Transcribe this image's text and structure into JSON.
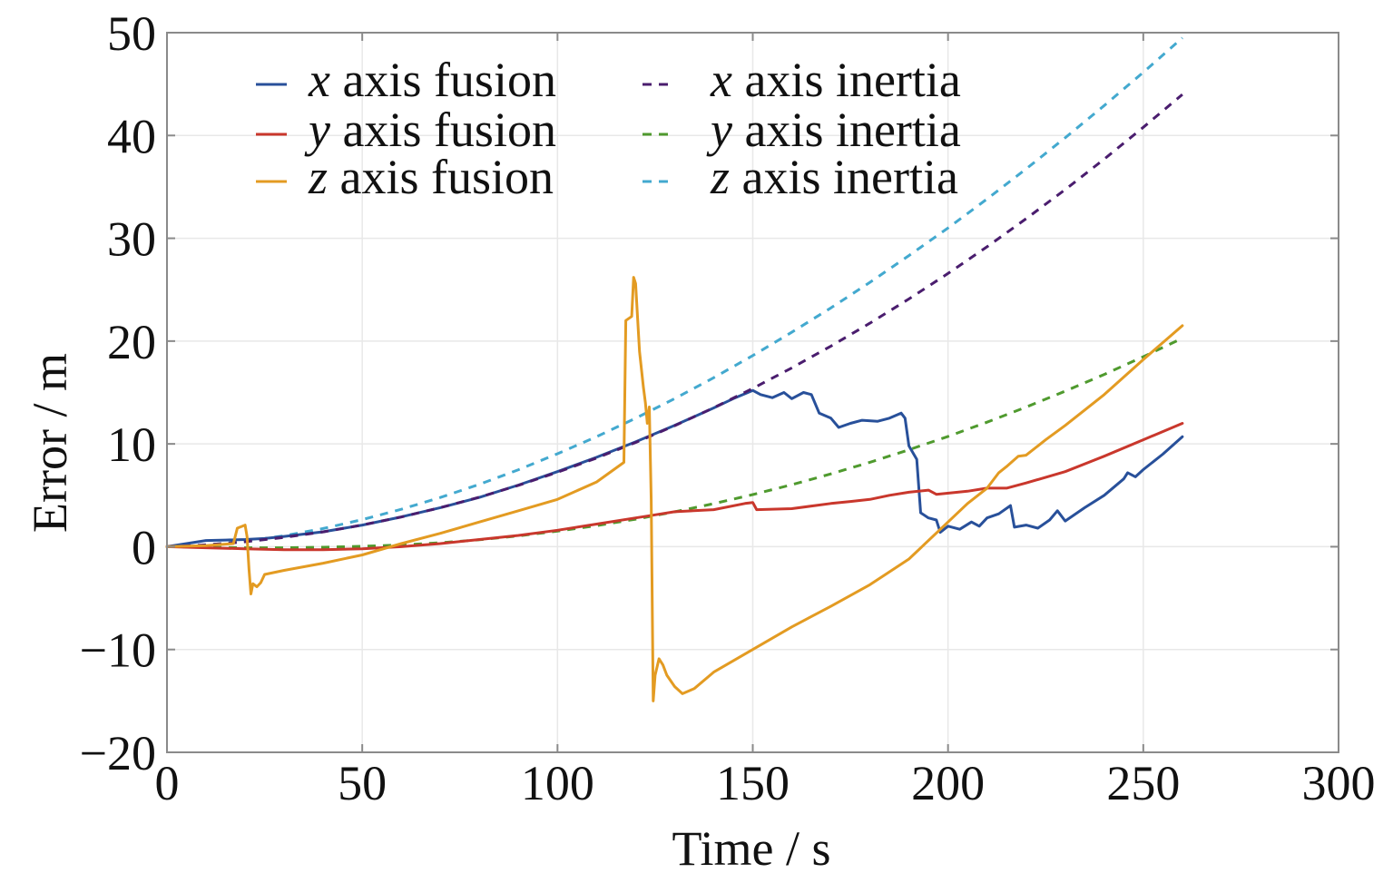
{
  "chart_data": {
    "type": "line",
    "xlabel": "Time / s",
    "ylabel": "Error / m",
    "xlim": [
      0,
      300
    ],
    "ylim": [
      -20,
      50
    ],
    "xticks": [
      0,
      50,
      100,
      150,
      200,
      250,
      300
    ],
    "xticklabels": [
      "0",
      "50",
      "100",
      "150",
      "200",
      "250",
      "300"
    ],
    "yticks": [
      -20,
      -10,
      0,
      10,
      20,
      30,
      40,
      50
    ],
    "yticklabels": [
      "−20",
      "−10",
      "0",
      "10",
      "20",
      "30",
      "40",
      "50"
    ],
    "grid": true,
    "legend": {
      "position": "top-left",
      "columns": 2
    },
    "series": [
      {
        "name": "x axis fusion",
        "color": "#28509a",
        "style": "solid",
        "x": [
          0,
          5,
          10,
          15,
          20,
          25,
          30,
          40,
          50,
          60,
          70,
          80,
          90,
          100,
          110,
          120,
          130,
          140,
          145,
          150,
          152,
          155,
          158,
          160,
          163,
          165,
          167,
          170,
          172,
          175,
          178,
          182,
          185,
          188,
          189,
          190,
          192,
          193,
          195,
          197,
          198,
          200,
          203,
          206,
          208,
          210,
          213,
          216,
          217,
          220,
          223,
          226,
          228,
          230,
          235,
          240,
          245,
          246,
          248,
          250,
          255,
          260
        ],
        "y": [
          0,
          0.3,
          0.6,
          0.65,
          0.7,
          0.8,
          1.0,
          1.45,
          2.1,
          2.9,
          3.8,
          4.8,
          6.0,
          7.3,
          8.7,
          10.2,
          11.8,
          13.5,
          14.4,
          15.2,
          14.8,
          14.5,
          15.0,
          14.4,
          15.0,
          14.8,
          13.0,
          12.5,
          11.6,
          12.0,
          12.3,
          12.2,
          12.5,
          13.0,
          12.5,
          9.8,
          8.5,
          3.3,
          2.8,
          2.6,
          1.4,
          2.0,
          1.7,
          2.4,
          2.0,
          2.8,
          3.2,
          4.0,
          1.9,
          2.1,
          1.8,
          2.6,
          3.5,
          2.5,
          3.8,
          5.0,
          6.6,
          7.2,
          6.8,
          7.5,
          9.0,
          10.7
        ]
      },
      {
        "name": "y axis fusion",
        "color": "#c9372c",
        "style": "solid",
        "x": [
          0,
          10,
          20,
          30,
          40,
          50,
          60,
          70,
          80,
          90,
          100,
          110,
          120,
          125,
          130,
          140,
          148,
          150,
          151,
          160,
          170,
          175,
          180,
          185,
          190,
          195,
          197,
          205,
          210,
          215,
          220,
          230,
          240,
          250,
          260
        ],
        "y": [
          0,
          -0.1,
          -0.2,
          -0.3,
          -0.3,
          -0.2,
          0,
          0.3,
          0.7,
          1.1,
          1.6,
          2.2,
          2.8,
          3.1,
          3.4,
          3.6,
          4.2,
          4.3,
          3.6,
          3.7,
          4.2,
          4.4,
          4.6,
          5.0,
          5.3,
          5.5,
          5.1,
          5.4,
          5.7,
          5.7,
          6.2,
          7.3,
          8.8,
          10.4,
          12.0
        ]
      },
      {
        "name": "z axis fusion",
        "color": "#e39b22",
        "style": "solid",
        "x": [
          0,
          10,
          17,
          18,
          20,
          20.5,
          21,
          21.5,
          22,
          23,
          24,
          25,
          30,
          40,
          50,
          60,
          70,
          80,
          90,
          100,
          110,
          117,
          117.5,
          119,
          119.5,
          120,
          121,
          122,
          122.5,
          123,
          123.5,
          124,
          124.5,
          125,
          126,
          127,
          128,
          130,
          132,
          135,
          140,
          150,
          160,
          170,
          180,
          190,
          200,
          205,
          210,
          213,
          215,
          218,
          220,
          225,
          230,
          240,
          250,
          260
        ],
        "y": [
          0,
          0.1,
          0.3,
          1.8,
          2.1,
          1.0,
          -2.2,
          -4.6,
          -3.6,
          -3.9,
          -3.5,
          -2.7,
          -2.3,
          -1.6,
          -0.8,
          0.3,
          1.3,
          2.4,
          3.5,
          4.6,
          6.3,
          8.2,
          22.0,
          22.4,
          26.2,
          25.6,
          19.0,
          15.5,
          14.0,
          12.0,
          13.6,
          4.5,
          -15.0,
          -12.5,
          -10.9,
          -11.5,
          -12.5,
          -13.6,
          -14.3,
          -13.8,
          -12.2,
          -10.0,
          -7.8,
          -5.8,
          -3.7,
          -1.2,
          2.4,
          4.2,
          5.7,
          7.2,
          7.8,
          8.8,
          8.9,
          10.4,
          11.8,
          14.8,
          18.2,
          21.5
        ]
      },
      {
        "name": "x axis inertia",
        "color": "#4a1d6e",
        "style": "dashed",
        "x": [
          0,
          10,
          20,
          30,
          40,
          50,
          60,
          70,
          80,
          90,
          100,
          110,
          120,
          130,
          140,
          150,
          160,
          170,
          180,
          190,
          200,
          210,
          220,
          230,
          240,
          250,
          260
        ],
        "y": [
          0,
          0.18,
          0.48,
          0.9,
          1.44,
          2.11,
          2.89,
          3.8,
          4.82,
          5.97,
          7.24,
          8.63,
          10.14,
          11.77,
          13.52,
          15.4,
          17.39,
          19.51,
          21.74,
          24.1,
          26.58,
          29.18,
          31.9,
          34.74,
          37.7,
          40.79,
          43.99
        ]
      },
      {
        "name": "y axis inertia",
        "color": "#4f9a2e",
        "style": "dashed",
        "x": [
          0,
          10,
          20,
          30,
          40,
          50,
          60,
          70,
          80,
          90,
          100,
          110,
          120,
          130,
          140,
          150,
          160,
          170,
          180,
          190,
          200,
          210,
          220,
          230,
          240,
          250,
          260
        ],
        "y": [
          0,
          -0.05,
          -0.1,
          -0.1,
          -0.05,
          0.04,
          0.17,
          0.38,
          0.67,
          1.05,
          1.51,
          2.05,
          2.68,
          3.39,
          4.19,
          5.07,
          6.03,
          7.08,
          8.21,
          9.43,
          10.73,
          12.11,
          13.58,
          15.13,
          16.76,
          18.48,
          20.28
        ]
      },
      {
        "name": "z axis inertia",
        "color": "#43a9cf",
        "style": "dashed",
        "x": [
          0,
          10,
          20,
          30,
          40,
          50,
          60,
          70,
          80,
          90,
          100,
          110,
          120,
          130,
          140,
          150,
          160,
          170,
          180,
          190,
          200,
          210,
          220,
          230,
          240,
          250,
          260
        ],
        "y": [
          0,
          0.15,
          0.52,
          1.06,
          1.77,
          2.63,
          3.64,
          4.79,
          6.07,
          7.49,
          9.04,
          10.7,
          12.49,
          14.4,
          16.44,
          18.59,
          20.86,
          23.23,
          25.72,
          28.32,
          31.0,
          33.83,
          36.75,
          39.78,
          42.91,
          46.14,
          49.5
        ]
      }
    ]
  }
}
